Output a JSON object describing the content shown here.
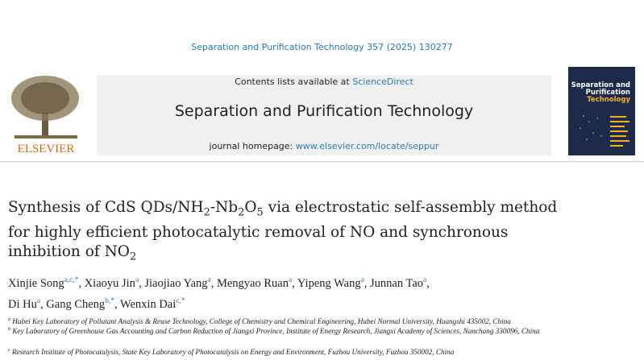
{
  "journal_ref": "Separation and Purification Technology 357 (2025) 130277",
  "banner": {
    "contents_prefix": "Contents lists available at ",
    "contents_link": "ScienceDirect",
    "journal_title": "Separation and Purification Technology",
    "homepage_prefix": "journal homepage: ",
    "homepage_link": "www.elsevier.com/locate/seppur"
  },
  "publisher_logo": "ELSEVIER",
  "cover": {
    "line1": "Separation and",
    "line2": "Purification",
    "line3": "Technology"
  },
  "article": {
    "title_parts": [
      "Synthesis of CdS QDs/NH",
      "2",
      "-Nb",
      "2",
      "O",
      "5",
      " via electrostatic self-assembly method for highly efficient photocatalytic removal of NO and synchronous inhibition of NO",
      "2"
    ]
  },
  "authors": [
    {
      "name": "Xinjie Song",
      "sup": "a,c,*"
    },
    {
      "name": "Xiaoyu Jin",
      "sup": "a"
    },
    {
      "name": "Jiaojiao Yang",
      "sup": "a"
    },
    {
      "name": "Mengyao Ruan",
      "sup": "a"
    },
    {
      "name": "Yipeng Wang",
      "sup": "a"
    },
    {
      "name": "Junnan Tao",
      "sup": "a"
    },
    {
      "name": "Di Hu",
      "sup": "a"
    },
    {
      "name": "Gang Cheng",
      "sup": "b,*"
    },
    {
      "name": "Wenxin Dai",
      "sup": "c,*"
    }
  ],
  "affiliations": [
    {
      "label": "a",
      "text": "Hubei Key Laboratory of Pollutant Analysis & Reuse Technology, College of Chemistry and Chemical Engineering, Hubei Normal University, Huangshi 435002, China"
    },
    {
      "label": "b",
      "text": "Key Laboratory of Greenhouse Gas Accounting and Carbon Reduction of Jiangxi Province, Institute of Energy Research, Jiangxi Academy of Sciences, Nanchang 330096, China"
    },
    {
      "label": "c",
      "text": "Research Institute of Photocatalysis, State Key Laboratory of Photocatalysis on Energy and Environment, Fuzhou University, Fuzhou 350002, China"
    }
  ]
}
